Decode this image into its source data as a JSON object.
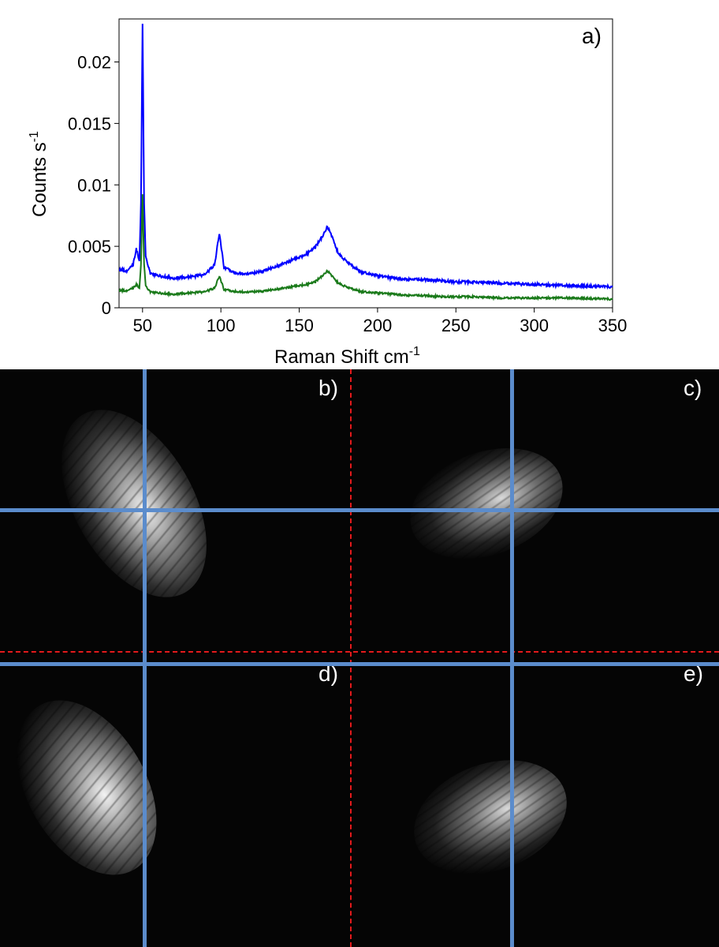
{
  "chart_data": {
    "type": "line",
    "panel_label": "a)",
    "xlabel": "Raman Shift cm",
    "xlabel_superscript": "-1",
    "ylabel": "Counts s",
    "ylabel_superscript": "-1",
    "xlim": [
      35,
      350
    ],
    "ylim": [
      0,
      0.0235
    ],
    "x_ticks": [
      50,
      100,
      150,
      200,
      250,
      300,
      350
    ],
    "x_tick_labels": [
      "50",
      "100",
      "150",
      "200",
      "250",
      "300",
      "350"
    ],
    "y_ticks": [
      0,
      0.005,
      0.01,
      0.015,
      0.02
    ],
    "y_tick_labels": [
      "0",
      "0.005",
      "0.01",
      "0.015",
      "0.02"
    ],
    "series": [
      {
        "name": "spectrum-blue",
        "color": "#0000ff",
        "x": [
          35,
          40,
          44,
          46,
          48,
          49,
          50,
          51,
          52,
          55,
          60,
          70,
          80,
          90,
          96,
          99,
          102,
          110,
          120,
          130,
          140,
          150,
          155,
          160,
          165,
          168,
          171,
          175,
          180,
          185,
          190,
          200,
          210,
          220,
          230,
          240,
          250,
          260,
          280,
          300,
          320,
          350
        ],
        "values": [
          0.0031,
          0.003,
          0.0035,
          0.0048,
          0.0038,
          0.0085,
          0.0232,
          0.0085,
          0.0042,
          0.0028,
          0.0026,
          0.0024,
          0.0025,
          0.0027,
          0.0035,
          0.0061,
          0.0033,
          0.0028,
          0.0028,
          0.0031,
          0.0036,
          0.0041,
          0.0044,
          0.0049,
          0.0058,
          0.0066,
          0.0058,
          0.0044,
          0.0038,
          0.0033,
          0.0029,
          0.0026,
          0.0024,
          0.0023,
          0.0023,
          0.0022,
          0.0021,
          0.0021,
          0.002,
          0.0019,
          0.0018,
          0.0017
        ]
      },
      {
        "name": "spectrum-green",
        "color": "#1a7a1a",
        "x": [
          35,
          40,
          44,
          46,
          48,
          49,
          50,
          51,
          52,
          55,
          60,
          70,
          80,
          90,
          96,
          99,
          102,
          110,
          120,
          130,
          140,
          150,
          155,
          160,
          165,
          168,
          171,
          175,
          180,
          185,
          190,
          200,
          210,
          220,
          230,
          240,
          250,
          260,
          280,
          300,
          320,
          350
        ],
        "values": [
          0.0014,
          0.0014,
          0.0016,
          0.0019,
          0.0016,
          0.0035,
          0.0093,
          0.0035,
          0.0018,
          0.0013,
          0.0012,
          0.0011,
          0.0012,
          0.0013,
          0.0016,
          0.0026,
          0.0015,
          0.0013,
          0.0013,
          0.0014,
          0.0016,
          0.0018,
          0.0019,
          0.0021,
          0.0026,
          0.003,
          0.0026,
          0.002,
          0.0017,
          0.0015,
          0.0013,
          0.0012,
          0.0011,
          0.001,
          0.001,
          0.0009,
          0.0009,
          0.0009,
          0.0008,
          0.0008,
          0.0008,
          0.0007
        ]
      }
    ]
  },
  "image_panels": [
    {
      "id": "b",
      "label": "b)"
    },
    {
      "id": "c",
      "label": "c)"
    },
    {
      "id": "d",
      "label": "d)"
    },
    {
      "id": "e",
      "label": "e)"
    }
  ],
  "colors": {
    "crosshair": "#5b8ccc",
    "divider": "#e41a1c",
    "label": "#ffffff"
  }
}
